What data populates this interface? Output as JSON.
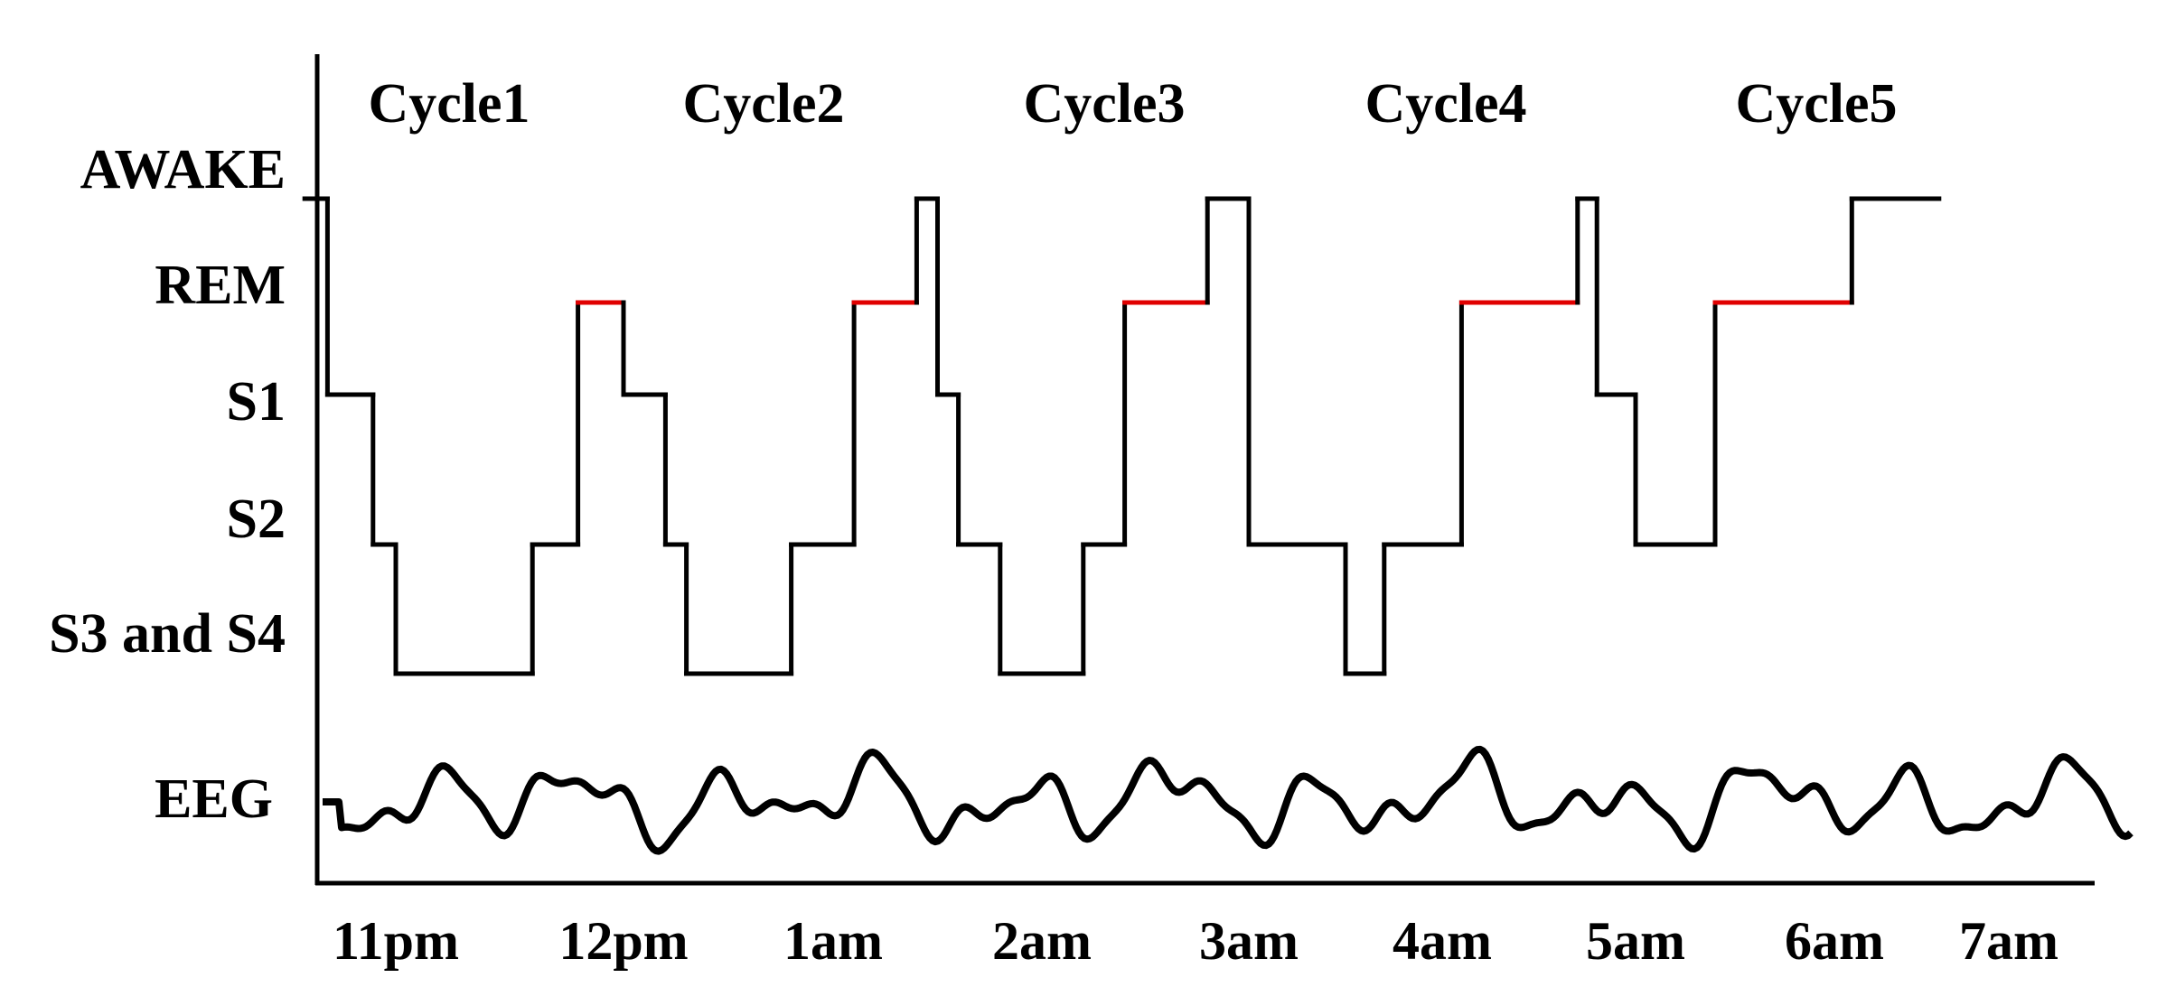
{
  "chart_data": {
    "type": "line",
    "title": "",
    "xlabel": "",
    "ylabel": "",
    "cycles": [
      "Cycle1",
      "Cycle2",
      "Cycle3",
      "Cycle4",
      "Cycle5"
    ],
    "stages": [
      "AWAKE",
      "REM",
      "S1",
      "S2",
      "S3 and S4"
    ],
    "eeg_label": "EEG",
    "x_ticks": [
      "11pm",
      "12pm",
      "1am",
      "2am",
      "3am",
      "4am",
      "5am",
      "6am",
      "7am"
    ],
    "x_unit": "hours from 11pm",
    "xlim": [
      -0.4,
      8.1
    ],
    "hypnogram": [
      [
        -0.4,
        "AWAKE"
      ],
      [
        -0.3,
        "S1"
      ],
      [
        -0.1,
        "S2"
      ],
      [
        0.0,
        "S3 and S4"
      ],
      [
        0.6,
        "S2"
      ],
      [
        0.8,
        "REM"
      ],
      [
        1.0,
        "S1"
      ],
      [
        1.2,
        "S2"
      ],
      [
        1.3,
        "S3 and S4"
      ],
      [
        1.8,
        "S2"
      ],
      [
        2.1,
        "REM"
      ],
      [
        2.4,
        "AWAKE"
      ],
      [
        2.5,
        "S1"
      ],
      [
        2.6,
        "S2"
      ],
      [
        2.8,
        "S3 and S4"
      ],
      [
        3.2,
        "S2"
      ],
      [
        3.4,
        "REM"
      ],
      [
        3.8,
        "AWAKE"
      ],
      [
        4.0,
        "S2"
      ],
      [
        4.5,
        "S3 and S4"
      ],
      [
        4.7,
        "S2"
      ],
      [
        5.1,
        "REM"
      ],
      [
        5.7,
        "AWAKE"
      ],
      [
        5.8,
        "S1"
      ],
      [
        6.0,
        "S2"
      ],
      [
        6.4,
        "REM"
      ],
      [
        7.1,
        "AWAKE"
      ],
      [
        7.6,
        "AWAKE"
      ]
    ],
    "rem_color": "#e00000",
    "line_color": "#000000"
  }
}
